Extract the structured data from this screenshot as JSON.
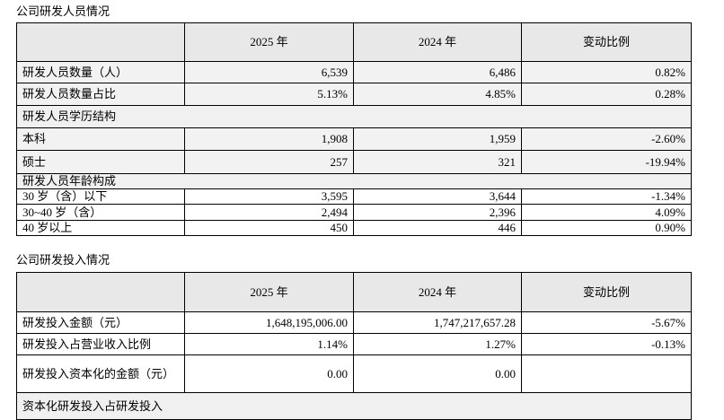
{
  "sections": [
    {
      "title": "公司研发人员情况",
      "table": {
        "header": [
          "",
          "2025 年",
          "2024 年",
          "变动比例"
        ],
        "rows": [
          [
            "研发人员数量（人）",
            "6,539",
            "6,486",
            "0.82%"
          ],
          [
            "研发人员数量占比",
            "5.13%",
            "4.85%",
            "0.28%"
          ],
          [
            "研发人员学历结构"
          ],
          [
            "本科",
            "1,908",
            "1,959",
            "-2.60%"
          ],
          [
            "硕士",
            "257",
            "321",
            "-19.94%"
          ],
          [
            "研发人员年龄构成"
          ],
          [
            "30 岁（含）以下",
            "3,595",
            "3,644",
            "-1.34%"
          ],
          [
            "30~40 岁（含）",
            "2,494",
            "2,396",
            "4.09%"
          ],
          [
            "40 岁以上",
            "450",
            "446",
            "0.90%"
          ]
        ]
      }
    },
    {
      "title": "公司研发投入情况",
      "table": {
        "header": [
          "",
          "2025 年",
          "2024 年",
          "变动比例"
        ],
        "rows": [
          [
            "研发投入金额（元）",
            "1,648,195,006.00",
            "1,747,217,657.28",
            "-5.67%"
          ],
          [
            "研发投入占营业收入比例",
            "1.14%",
            "1.27%",
            "-0.13%"
          ],
          [
            "研发投入资本化的金额（元）",
            "0.00",
            "0.00",
            ""
          ],
          [
            "资本化研发投入占研发投入"
          ]
        ]
      }
    }
  ]
}
